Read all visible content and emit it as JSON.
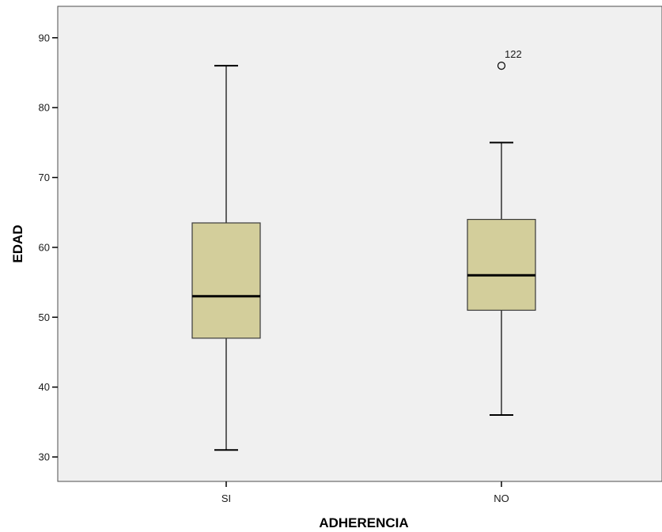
{
  "chart_data": {
    "type": "boxplot",
    "xlabel": "ADHERENCIA",
    "ylabel": "EDAD",
    "ylim": [
      26.5,
      94.5
    ],
    "yticks": [
      30,
      40,
      50,
      60,
      70,
      80,
      90
    ],
    "grid": false,
    "categories": [
      "SI",
      "NO"
    ],
    "boxes": [
      {
        "category": "SI",
        "whisker_low": 31,
        "q1": 47,
        "median": 53,
        "q3": 63.5,
        "whisker_high": 86,
        "outliers": []
      },
      {
        "category": "NO",
        "whisker_low": 36,
        "q1": 51,
        "median": 56,
        "q3": 64,
        "whisker_high": 75,
        "outliers": [
          {
            "value": 86,
            "label": "122"
          }
        ]
      }
    ],
    "colors": {
      "plot_background": "#f0f0f0",
      "box_fill": "#d3ce9b",
      "line": "#000000"
    }
  }
}
